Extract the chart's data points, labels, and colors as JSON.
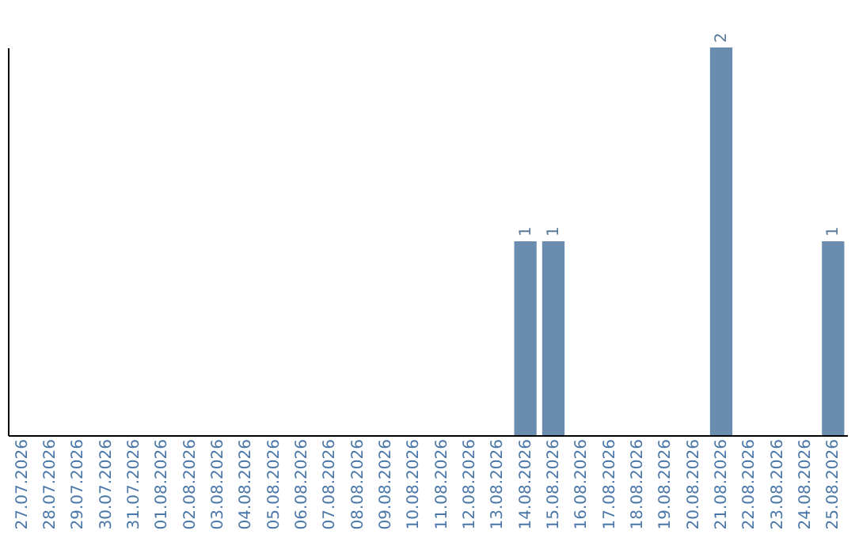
{
  "chart_data": {
    "type": "bar",
    "categories": [
      "27.07.2026",
      "28.07.2026",
      "29.07.2026",
      "30.07.2026",
      "31.07.2026",
      "01.08.2026",
      "02.08.2026",
      "03.08.2026",
      "04.08.2026",
      "05.08.2026",
      "06.08.2026",
      "07.08.2026",
      "08.08.2026",
      "09.08.2026",
      "10.08.2026",
      "11.08.2026",
      "12.08.2026",
      "13.08.2026",
      "14.08.2026",
      "15.08.2026",
      "16.08.2026",
      "17.08.2026",
      "18.08.2026",
      "19.08.2026",
      "20.08.2026",
      "21.08.2026",
      "22.08.2026",
      "23.08.2026",
      "24.08.2026",
      "25.08.2026"
    ],
    "values": [
      null,
      null,
      null,
      null,
      null,
      null,
      null,
      null,
      null,
      null,
      null,
      null,
      null,
      null,
      null,
      null,
      null,
      null,
      1,
      1,
      null,
      null,
      null,
      null,
      null,
      2,
      null,
      null,
      null,
      1
    ],
    "data_labels": true,
    "color": "#6a8caf",
    "grid": false,
    "tick_labels": "x"
  }
}
